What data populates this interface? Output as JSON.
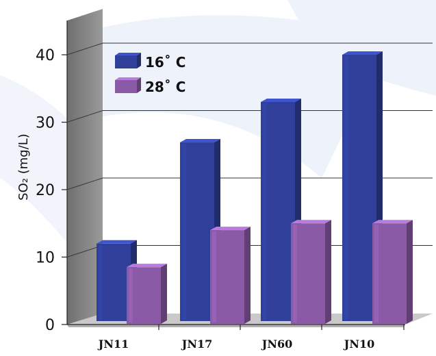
{
  "chart_data": {
    "type": "bar",
    "categories": [
      "JN11",
      "JN17",
      "JN60",
      "JN10"
    ],
    "series": [
      {
        "name": "16˚ C",
        "color": "#2f3f9a",
        "values": [
          12,
          27,
          33,
          40
        ]
      },
      {
        "name": "28˚ C",
        "color": "#8a5aa6",
        "values": [
          8.5,
          14,
          15,
          15
        ]
      }
    ],
    "ylabel": "SO₂ (mg/L)",
    "ylim": [
      0,
      45
    ],
    "yticks": [
      0,
      10,
      20,
      30,
      40
    ],
    "grid": true,
    "legend_position": "top-left",
    "style": "3d"
  },
  "colors": {
    "back_wall": "#ffffff",
    "side_wall": "#808080",
    "floor": "#c8c8c8",
    "watermark": "#e9eef8"
  }
}
